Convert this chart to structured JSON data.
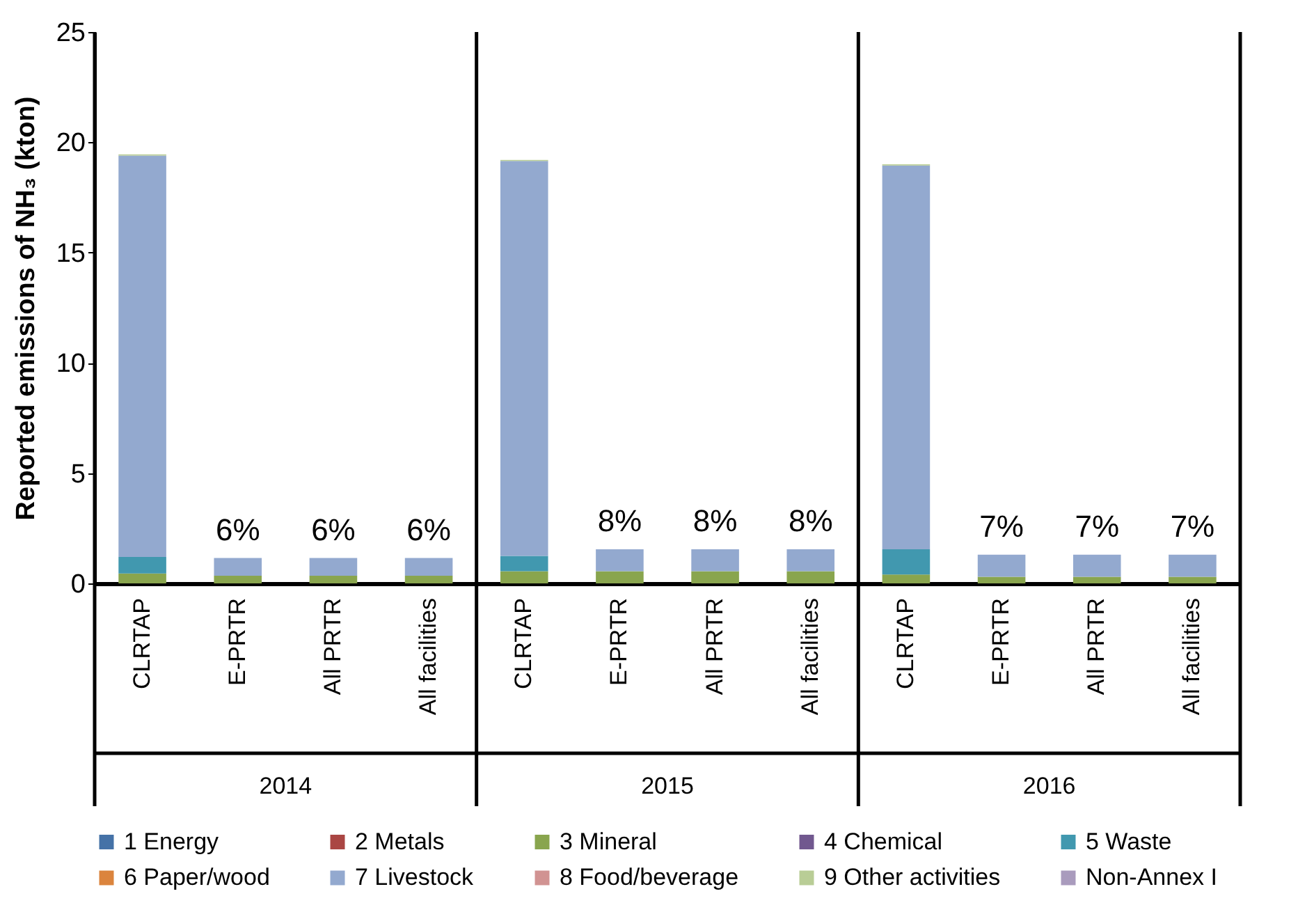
{
  "chart_data": {
    "type": "bar",
    "stacked": true,
    "ylabel": "Reported emissions of NH₃ (kton)",
    "categories": [
      "CLRTAP",
      "E-PRTR",
      "All PRTR",
      "All facilities",
      "CLRTAP",
      "E-PRTR",
      "All PRTR",
      "All facilities",
      "CLRTAP",
      "E-PRTR",
      "All PRTR",
      "All facilities"
    ],
    "annotations": [
      "2014",
      "2015",
      "2016",
      "6%",
      "6%",
      "6%",
      "8%",
      "8%",
      "8%",
      "7%",
      "7%",
      "7%"
    ],
    "series": [
      {
        "name": "1 Energy",
        "color": "#4572a7",
        "values": [
          0,
          0,
          0,
          0,
          0,
          0,
          0,
          0,
          0,
          0,
          0,
          0
        ]
      },
      {
        "name": "2 Metals",
        "color": "#aa4643",
        "values": [
          0,
          0,
          0,
          0,
          0,
          0,
          0,
          0,
          0,
          0,
          0,
          0
        ]
      },
      {
        "name": "3 Mineral",
        "color": "#89a54e",
        "values": [
          0.45,
          0.35,
          0.35,
          0.35,
          0.55,
          0.55,
          0.55,
          0.55,
          0.4,
          0.3,
          0.3,
          0.3
        ]
      },
      {
        "name": "4 Chemical",
        "color": "#71588f",
        "values": [
          0,
          0,
          0,
          0,
          0,
          0,
          0,
          0,
          0,
          0,
          0,
          0
        ]
      },
      {
        "name": "5 Waste",
        "color": "#4198af",
        "values": [
          0.75,
          0,
          0,
          0,
          0.7,
          0,
          0,
          0,
          1.15,
          0,
          0,
          0
        ]
      },
      {
        "name": "6 Paper/wood",
        "color": "#db843d",
        "values": [
          0,
          0,
          0,
          0,
          0,
          0,
          0,
          0,
          0,
          0,
          0,
          0
        ]
      },
      {
        "name": "7 Livestock",
        "color": "#93a9cf",
        "values": [
          18.2,
          0.8,
          0.8,
          0.8,
          17.9,
          1.0,
          1.0,
          1.0,
          17.4,
          1.0,
          1.0,
          1.0
        ]
      },
      {
        "name": "8 Food/beverage",
        "color": "#d19392",
        "values": [
          0,
          0,
          0,
          0,
          0,
          0,
          0,
          0,
          0,
          0,
          0,
          0
        ]
      },
      {
        "name": "9 Other activities",
        "color": "#b9cd96",
        "values": [
          0.05,
          0,
          0,
          0,
          0.05,
          0,
          0,
          0,
          0.05,
          0,
          0,
          0
        ]
      },
      {
        "name": "Non-Annex I",
        "color": "#a99bbd",
        "values": [
          0,
          0,
          0,
          0,
          0,
          0,
          0,
          0,
          0,
          0,
          0,
          0
        ]
      }
    ],
    "ylim": [
      0,
      25
    ],
    "yticks": [
      0,
      5,
      10,
      15,
      20,
      25
    ],
    "grid": false,
    "legend": "bottom"
  }
}
